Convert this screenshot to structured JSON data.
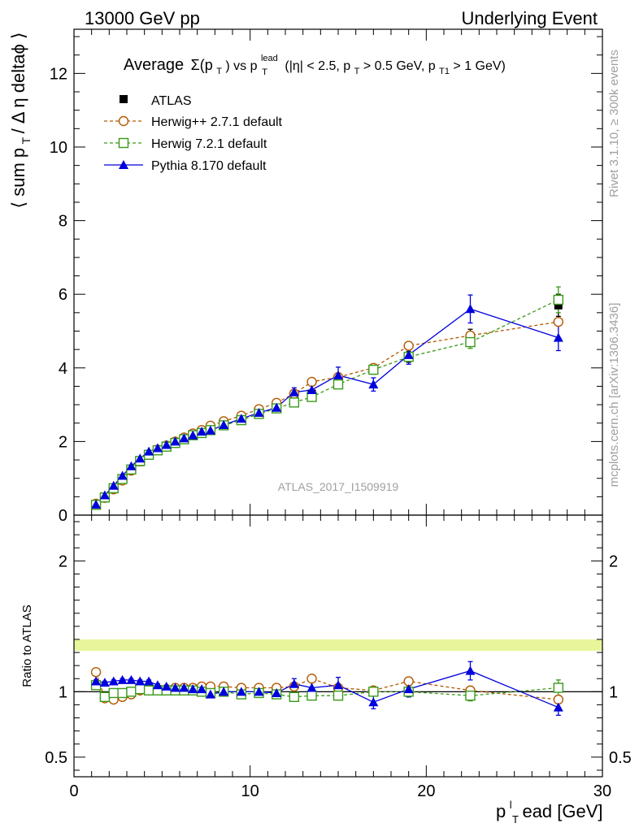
{
  "header": {
    "left": "13000 GeV pp",
    "right": "Underlying Event"
  },
  "side": {
    "rivet": "Rivet 3.1.10, ≥ 300k events",
    "mcplots": "mcplots.cern.ch [arXiv:1306.3436]"
  },
  "colors": {
    "atlas": "#000000",
    "herwigpp": "#b35900",
    "herwig7": "#3a9a1a",
    "pythia": "#0000dd",
    "band": "#e8f59a",
    "watermark": "#a0a0a0"
  },
  "chart_data": [
    {
      "type": "scatter",
      "title_parts": {
        "average": "Average",
        "sigma": "Σ(p",
        "sigma_sub": "T",
        "close": ")",
        "vs": " vs p",
        "lead_sup": "lead",
        "lead_sub": "T",
        "cuts": " (|η| < 2.5, p",
        "cuts_sub1": "T",
        "cuts2": " > 0.5 GeV, p",
        "cuts_sub2": "T1",
        "cuts3": " > 1 GeV)"
      },
      "ylabel_parts": {
        "main": "⟨ sum p",
        "sub": "T",
        "rest": " / Δ η deltaϕ ⟩"
      },
      "xlim": [
        0,
        30
      ],
      "ylim": [
        0,
        13.2
      ],
      "yticks": [
        0,
        2,
        4,
        6,
        8,
        10,
        12
      ],
      "watermark": "ATLAS_2017_I1509919",
      "legend_position": "top-left",
      "series": [
        {
          "name": "ATLAS",
          "marker": "filled-square",
          "x": [
            1.25,
            1.75,
            2.25,
            2.75,
            3.25,
            3.75,
            4.25,
            4.75,
            5.25,
            5.75,
            6.25,
            6.75,
            7.25,
            7.75,
            8.5,
            9.5,
            10.5,
            11.5,
            12.5,
            13.5,
            15.0,
            17.0,
            19.0,
            22.5,
            27.5
          ],
          "y": [
            0.27,
            0.5,
            0.74,
            0.99,
            1.24,
            1.44,
            1.62,
            1.75,
            1.85,
            1.95,
            2.05,
            2.15,
            2.23,
            2.33,
            2.45,
            2.62,
            2.78,
            2.95,
            3.18,
            3.3,
            3.65,
            3.95,
            4.3,
            4.85,
            5.7
          ],
          "yerr": [
            0.01,
            0.01,
            0.01,
            0.01,
            0.01,
            0.01,
            0.02,
            0.02,
            0.02,
            0.02,
            0.02,
            0.02,
            0.02,
            0.03,
            0.03,
            0.03,
            0.04,
            0.05,
            0.06,
            0.08,
            0.1,
            0.12,
            0.15,
            0.2,
            0.3
          ]
        },
        {
          "name": "Herwig++ 2.7.1 default",
          "marker": "open-circle",
          "line": "dashed",
          "x": [
            1.25,
            1.75,
            2.25,
            2.75,
            3.25,
            3.75,
            4.25,
            4.75,
            5.25,
            5.75,
            6.25,
            6.75,
            7.25,
            7.75,
            8.5,
            9.5,
            10.5,
            11.5,
            12.5,
            13.5,
            15.0,
            17.0,
            19.0,
            22.5,
            27.5
          ],
          "y": [
            0.31,
            0.47,
            0.7,
            0.94,
            1.21,
            1.46,
            1.64,
            1.78,
            1.89,
            2.0,
            2.11,
            2.22,
            2.31,
            2.43,
            2.55,
            2.7,
            2.88,
            3.05,
            3.3,
            3.62,
            3.75,
            4.0,
            4.6,
            4.88,
            5.25
          ]
        },
        {
          "name": "Herwig 7.2.1 default",
          "marker": "open-square",
          "line": "dashed",
          "x": [
            1.25,
            1.75,
            2.25,
            2.75,
            3.25,
            3.75,
            4.25,
            4.75,
            5.25,
            5.75,
            6.25,
            6.75,
            7.25,
            7.75,
            8.5,
            9.5,
            10.5,
            11.5,
            12.5,
            13.5,
            15.0,
            17.0,
            19.0,
            22.5,
            27.5
          ],
          "y": [
            0.28,
            0.48,
            0.73,
            0.98,
            1.24,
            1.47,
            1.64,
            1.76,
            1.86,
            1.96,
            2.06,
            2.17,
            2.23,
            2.31,
            2.44,
            2.58,
            2.75,
            2.9,
            3.06,
            3.21,
            3.55,
            3.95,
            4.3,
            4.7,
            5.85
          ],
          "yerr": [
            0.01,
            0.01,
            0.01,
            0.01,
            0.01,
            0.01,
            0.02,
            0.02,
            0.02,
            0.02,
            0.02,
            0.02,
            0.02,
            0.03,
            0.03,
            0.03,
            0.04,
            0.05,
            0.06,
            0.07,
            0.09,
            0.1,
            0.13,
            0.17,
            0.35
          ]
        },
        {
          "name": "Pythia 8.170 default",
          "marker": "filled-triangle",
          "line": "solid",
          "x": [
            1.25,
            1.75,
            2.25,
            2.75,
            3.25,
            3.75,
            4.25,
            4.75,
            5.25,
            5.75,
            6.25,
            6.75,
            7.25,
            7.75,
            8.5,
            9.5,
            10.5,
            11.5,
            12.5,
            13.5,
            15.0,
            17.0,
            19.0,
            22.5,
            27.5
          ],
          "y": [
            0.29,
            0.54,
            0.8,
            1.07,
            1.33,
            1.54,
            1.73,
            1.82,
            1.91,
            2.0,
            2.09,
            2.17,
            2.27,
            2.3,
            2.45,
            2.62,
            2.78,
            2.92,
            3.34,
            3.4,
            3.8,
            3.55,
            4.35,
            5.6,
            4.82
          ],
          "yerr": [
            0.01,
            0.01,
            0.01,
            0.01,
            0.02,
            0.02,
            0.02,
            0.02,
            0.03,
            0.03,
            0.03,
            0.03,
            0.04,
            0.04,
            0.05,
            0.06,
            0.07,
            0.08,
            0.12,
            0.15,
            0.22,
            0.18,
            0.25,
            0.38,
            0.35
          ]
        }
      ]
    },
    {
      "type": "scatter",
      "ylabel": "Ratio to ATLAS",
      "xlabel_parts": {
        "p": "p",
        "sup": "l",
        "sub": "T",
        "rest": "ead [GeV]"
      },
      "xlim": [
        0,
        30
      ],
      "ylim": [
        0.35,
        2.35
      ],
      "xticks": [
        0,
        10,
        20,
        30
      ],
      "ytick_labels": [
        "0.5",
        "1",
        "2"
      ],
      "ytick_values": [
        0.5,
        1,
        2
      ],
      "reference_line": 1,
      "series": [
        {
          "name": "Herwig++ 2.7.1 default",
          "marker": "open-circle",
          "line": "dashed",
          "x": [
            1.25,
            1.75,
            2.25,
            2.75,
            3.25,
            3.75,
            4.25,
            4.75,
            5.25,
            5.75,
            6.25,
            6.75,
            7.25,
            7.75,
            8.5,
            9.5,
            10.5,
            11.5,
            12.5,
            13.5,
            15.0,
            17.0,
            19.0,
            22.5,
            27.5
          ],
          "y": [
            1.15,
            0.95,
            0.94,
            0.96,
            0.98,
            1.01,
            1.02,
            1.02,
            1.02,
            1.03,
            1.03,
            1.03,
            1.04,
            1.04,
            1.04,
            1.03,
            1.03,
            1.03,
            1.04,
            1.1,
            1.03,
            1.01,
            1.08,
            1.01,
            0.94
          ]
        },
        {
          "name": "Herwig 7.2.1 default",
          "marker": "open-square",
          "line": "dashed",
          "x": [
            1.25,
            1.75,
            2.25,
            2.75,
            3.25,
            3.75,
            4.25,
            4.75,
            5.25,
            5.75,
            6.25,
            6.75,
            7.25,
            7.75,
            8.5,
            9.5,
            10.5,
            11.5,
            12.5,
            13.5,
            15.0,
            17.0,
            19.0,
            22.5,
            27.5
          ],
          "y": [
            1.05,
            0.96,
            0.99,
            0.99,
            1.0,
            1.02,
            1.01,
            1.01,
            1.01,
            1.01,
            1.01,
            1.01,
            1.0,
            0.99,
            1.0,
            0.98,
            0.99,
            0.98,
            0.96,
            0.97,
            0.97,
            1.0,
            1.0,
            0.97,
            1.03
          ],
          "yerr": [
            0.01,
            0.01,
            0.01,
            0.01,
            0.01,
            0.01,
            0.01,
            0.01,
            0.01,
            0.01,
            0.01,
            0.01,
            0.01,
            0.01,
            0.01,
            0.01,
            0.02,
            0.02,
            0.02,
            0.02,
            0.03,
            0.03,
            0.04,
            0.04,
            0.06
          ]
        },
        {
          "name": "Pythia 8.170 default",
          "marker": "filled-triangle",
          "line": "solid",
          "x": [
            1.25,
            1.75,
            2.25,
            2.75,
            3.25,
            3.75,
            4.25,
            4.75,
            5.25,
            5.75,
            6.25,
            6.75,
            7.25,
            7.75,
            8.5,
            9.5,
            10.5,
            11.5,
            12.5,
            13.5,
            15.0,
            17.0,
            19.0,
            22.5,
            27.5
          ],
          "y": [
            1.08,
            1.07,
            1.08,
            1.09,
            1.09,
            1.08,
            1.08,
            1.05,
            1.04,
            1.03,
            1.03,
            1.02,
            1.02,
            0.98,
            1.0,
            1.0,
            1.0,
            0.99,
            1.06,
            1.03,
            1.05,
            0.92,
            1.02,
            1.16,
            0.88
          ],
          "yerr": [
            0.01,
            0.01,
            0.01,
            0.01,
            0.01,
            0.01,
            0.01,
            0.01,
            0.01,
            0.01,
            0.01,
            0.01,
            0.02,
            0.02,
            0.02,
            0.02,
            0.03,
            0.03,
            0.04,
            0.05,
            0.06,
            0.05,
            0.06,
            0.07,
            0.06
          ]
        }
      ]
    }
  ]
}
